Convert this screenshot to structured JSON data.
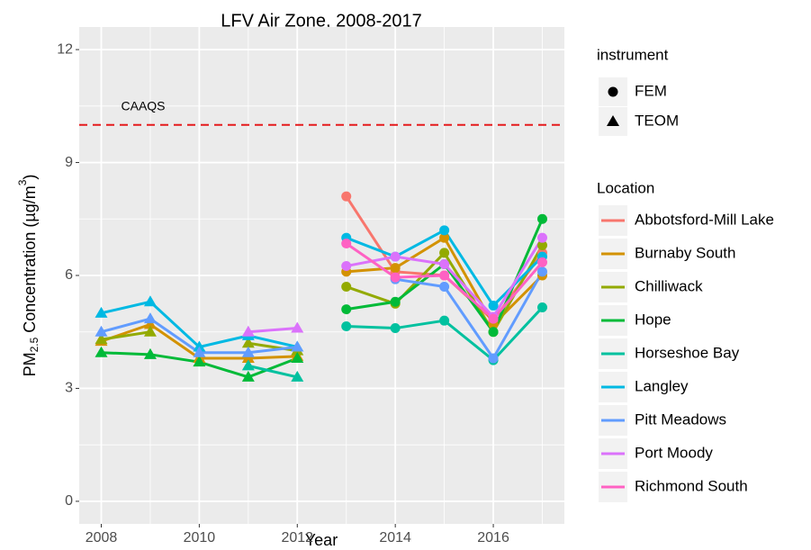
{
  "chart_data": {
    "type": "line",
    "title": "LFV Air Zone, 2008-2017",
    "x_label": "Year",
    "y_label": {
      "main": "PM",
      "sub": "2.5",
      "rest": " Concentration (µg/m",
      "sup": "3",
      "end": ")"
    },
    "x": [
      2008,
      2009,
      2010,
      2011,
      2012,
      2013,
      2014,
      2015,
      2016,
      2017
    ],
    "instrument": [
      "TEOM",
      "TEOM",
      "TEOM",
      "TEOM",
      "TEOM",
      "FEM",
      "FEM",
      "FEM",
      "FEM",
      "FEM"
    ],
    "xlim": [
      2007.55,
      2017.45
    ],
    "xticks": [
      2008,
      2010,
      2012,
      2014,
      2016
    ],
    "xminor": [
      2009,
      2011,
      2013,
      2015,
      2017
    ],
    "ylim": [
      -0.6,
      12.6
    ],
    "yticks": [
      0,
      3,
      6,
      9,
      12
    ],
    "yminor": [
      1.5,
      4.5,
      7.5,
      10.5
    ],
    "grid": true,
    "reference_line": {
      "value": 10,
      "label": "CAAQS",
      "color": "#E41A1C"
    },
    "shape_legend": {
      "title": "instrument",
      "items": [
        "FEM",
        "TEOM"
      ]
    },
    "color_legend_title": "Location",
    "series": [
      {
        "name": "Abbotsford-Mill Lake",
        "color": "#F8766D",
        "values": [
          null,
          null,
          null,
          null,
          null,
          8.1,
          6.1,
          6.0,
          4.8,
          6.6
        ]
      },
      {
        "name": "Burnaby South",
        "color": "#D39200",
        "values": [
          4.25,
          4.7,
          3.8,
          3.8,
          3.85,
          6.1,
          6.2,
          7.0,
          4.7,
          6.0
        ]
      },
      {
        "name": "Chilliwack",
        "color": "#93AA00",
        "values": [
          4.3,
          4.5,
          null,
          4.2,
          4.0,
          5.7,
          5.25,
          6.6,
          4.5,
          6.8
        ]
      },
      {
        "name": "Hope",
        "color": "#00BA38",
        "values": [
          3.95,
          3.9,
          3.7,
          3.3,
          3.8,
          5.1,
          5.3,
          6.3,
          4.5,
          7.5
        ]
      },
      {
        "name": "Horseshoe Bay",
        "color": "#00C19F",
        "values": [
          null,
          null,
          null,
          3.6,
          3.3,
          4.65,
          4.6,
          4.8,
          3.75,
          5.15
        ]
      },
      {
        "name": "Langley",
        "color": "#00B9E3",
        "values": [
          5.0,
          5.3,
          4.1,
          4.4,
          4.1,
          7.0,
          6.5,
          7.2,
          5.2,
          6.5
        ]
      },
      {
        "name": "Pitt Meadows",
        "color": "#619CFF",
        "values": [
          4.5,
          4.85,
          3.95,
          3.95,
          4.1,
          null,
          5.9,
          5.7,
          3.8,
          6.1
        ]
      },
      {
        "name": "Port Moody",
        "color": "#DB72FB",
        "values": [
          null,
          null,
          null,
          4.5,
          4.6,
          6.25,
          6.5,
          6.3,
          4.9,
          7.0
        ]
      },
      {
        "name": "Richmond South",
        "color": "#FF61C3",
        "values": [
          null,
          null,
          null,
          null,
          null,
          6.85,
          5.95,
          6.0,
          4.85,
          6.35
        ]
      }
    ]
  }
}
